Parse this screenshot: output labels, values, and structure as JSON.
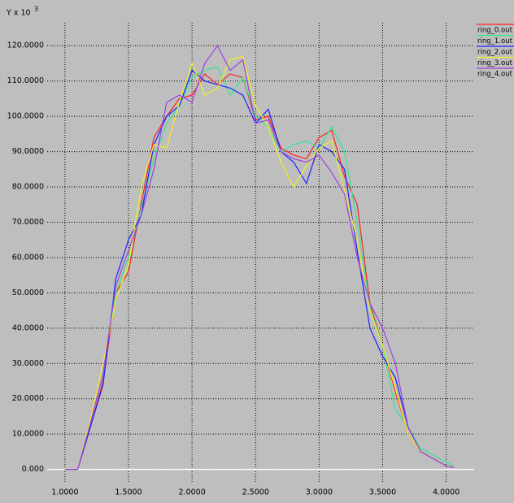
{
  "chart_data": {
    "type": "line",
    "axis_label": "Y x 10",
    "axis_exponent": "3",
    "x": [
      1.0,
      1.1,
      1.2,
      1.3,
      1.4,
      1.5,
      1.6,
      1.7,
      1.8,
      1.9,
      2.0,
      2.1,
      2.2,
      2.3,
      2.4,
      2.5,
      2.6,
      2.7,
      2.8,
      2.9,
      3.0,
      3.1,
      3.2,
      3.3,
      3.4,
      3.5,
      3.6,
      3.7,
      3.8,
      3.9,
      4.0,
      4.06
    ],
    "series": [
      {
        "name": "ring_0.out",
        "color": "#ff2020",
        "values": [
          0,
          0,
          12,
          25,
          50,
          56,
          75,
          94,
          100,
          105,
          106,
          112,
          109,
          112,
          111,
          99,
          100,
          91,
          89,
          88,
          94,
          96,
          83,
          75,
          47,
          35,
          22,
          10,
          5,
          3,
          1,
          0.5
        ]
      },
      {
        "name": "ring_1.out",
        "color": "#30e890",
        "values": [
          0,
          0,
          13,
          27,
          50,
          60,
          74,
          88,
          98,
          103,
          111,
          113,
          114,
          106,
          111,
          100,
          97,
          90,
          92,
          93,
          91,
          97,
          90,
          70,
          46,
          35,
          17,
          12,
          6,
          4,
          2,
          1
        ]
      },
      {
        "name": "ring_2.out",
        "color": "#2020ff",
        "values": [
          0,
          0,
          12,
          24,
          54,
          65,
          72,
          92,
          100,
          103,
          113,
          110,
          109,
          108,
          106,
          98,
          102,
          90,
          87,
          81,
          92,
          90,
          85,
          62,
          40,
          32,
          26,
          12,
          5,
          3,
          1,
          0.5
        ]
      },
      {
        "name": "ring_3.out",
        "color": "#f0f020",
        "values": [
          0,
          0,
          14,
          30,
          48,
          58,
          80,
          92,
          91,
          104,
          115,
          106,
          108,
          116,
          117,
          103,
          97,
          87,
          80,
          86,
          91,
          93,
          79,
          65,
          45,
          35,
          23,
          10,
          5,
          3,
          1,
          0.5
        ]
      },
      {
        "name": "ring_4.out",
        "color": "#a040e0",
        "values": [
          0,
          0,
          13,
          27,
          52,
          62,
          72,
          85,
          104,
          106,
          104,
          115,
          120,
          113,
          116,
          98,
          99,
          90,
          88,
          87,
          89,
          84,
          78,
          60,
          47,
          40,
          30,
          12,
          5,
          3,
          1,
          0.5
        ]
      }
    ],
    "xlim": [
      0.86,
      4.22
    ],
    "ylim": [
      -4,
      126.5
    ],
    "xticks": [
      {
        "value": 1.0,
        "label": "1.0000"
      },
      {
        "value": 1.5,
        "label": "1.5000"
      },
      {
        "value": 2.0,
        "label": "2.0000"
      },
      {
        "value": 2.5,
        "label": "2.5000"
      },
      {
        "value": 3.0,
        "label": "3.0000"
      },
      {
        "value": 3.5,
        "label": "3.5000"
      },
      {
        "value": 4.0,
        "label": "4.0000"
      }
    ],
    "yticks": [
      {
        "value": 0,
        "label": "0.000"
      },
      {
        "value": 10,
        "label": "10.0000"
      },
      {
        "value": 20,
        "label": "20.0000"
      },
      {
        "value": 30,
        "label": "30.0000"
      },
      {
        "value": 40,
        "label": "40.0000"
      },
      {
        "value": 50,
        "label": "50.0000"
      },
      {
        "value": 60,
        "label": "60.0000"
      },
      {
        "value": 70,
        "label": "70.0000"
      },
      {
        "value": 80,
        "label": "80.0000"
      },
      {
        "value": 90,
        "label": "90.0000"
      },
      {
        "value": 100,
        "label": "100.0000"
      },
      {
        "value": 110,
        "label": "110.0000"
      },
      {
        "value": 120,
        "label": "120.0000"
      }
    ],
    "grid": true
  }
}
